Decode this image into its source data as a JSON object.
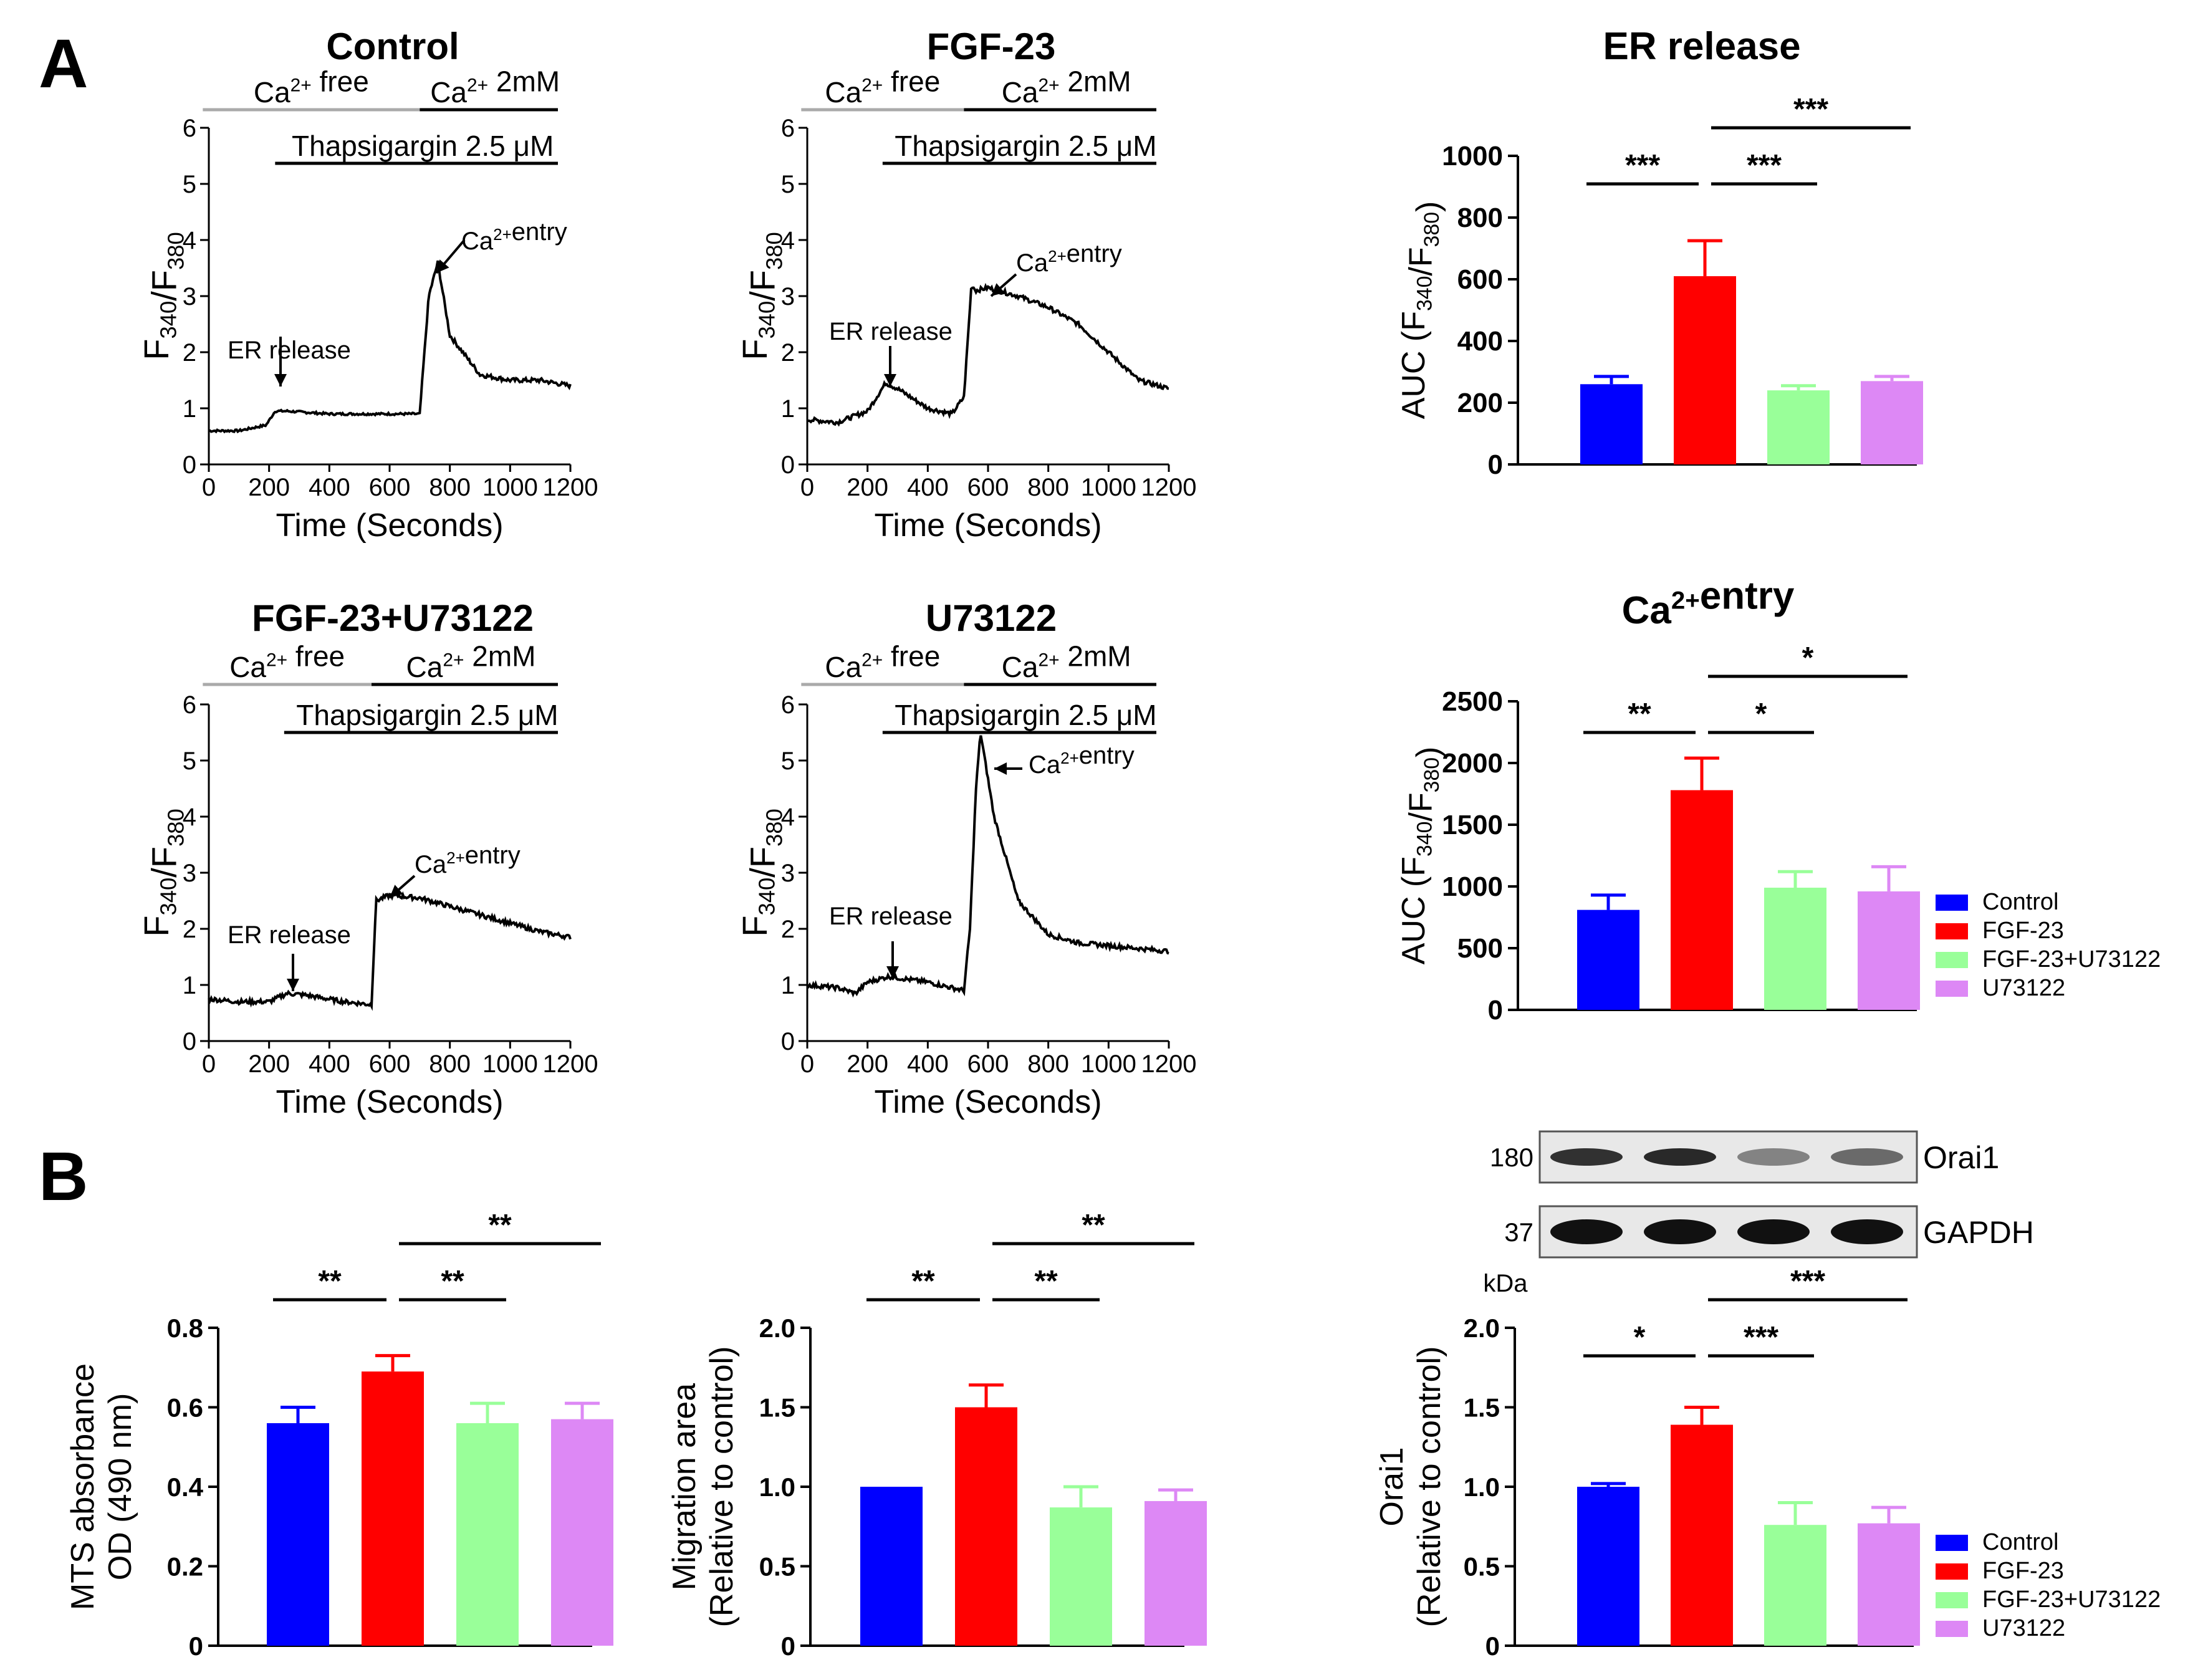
{
  "panel_labels": {
    "a": "A",
    "b": "B"
  },
  "colors": {
    "control": "#0000ff",
    "fgf23": "#ff0000",
    "fgf23_u73122": "#99ff99",
    "u73122": "#dd88f5",
    "ca_free_bar": "#aaaaaa",
    "ink": "#000000"
  },
  "trace_common": {
    "ca_free": "Ca2+ free",
    "ca_2mm": "Ca2+ 2mM",
    "thapsigargin": "Thapsigargin 2.5 μM",
    "ylabel": "F340/F380",
    "xlabel": "Time (Seconds)",
    "er_release": "ER release",
    "ca_entry": "Ca2+entry"
  },
  "legend": {
    "items": [
      "Control",
      "FGF-23",
      "FGF-23+U73122",
      "U73122"
    ]
  },
  "western_blot": {
    "bands": [
      {
        "label": "Orai1",
        "mw": "180",
        "intensity": [
          0.8,
          0.85,
          0.3,
          0.45
        ]
      },
      {
        "label": "GAPDH",
        "mw": "37",
        "intensity": [
          1.0,
          1.0,
          1.0,
          1.0
        ]
      }
    ],
    "unit": "kDa"
  },
  "chart_data": [
    {
      "id": "trace_control",
      "type": "line",
      "title": "Control",
      "xlabel": "Time (Seconds)",
      "ylabel": "F340/F380",
      "xlim": [
        0,
        1200
      ],
      "ylim": [
        0,
        6
      ],
      "xticks": [
        0,
        200,
        400,
        600,
        800,
        1000,
        1200
      ],
      "yticks": [
        0,
        1,
        2,
        3,
        4,
        5,
        6
      ],
      "x": [
        0,
        100,
        190,
        220,
        260,
        400,
        600,
        700,
        730,
        760,
        800,
        900,
        1000,
        1100,
        1200
      ],
      "y": [
        0.6,
        0.6,
        0.7,
        0.95,
        0.95,
        0.9,
        0.9,
        0.9,
        3.0,
        3.6,
        2.3,
        1.6,
        1.5,
        1.5,
        1.4
      ],
      "er_release_time": 230,
      "ca_entry_time": 760
    },
    {
      "id": "trace_fgf23",
      "type": "line",
      "title": "FGF-23",
      "xlabel": "Time (Seconds)",
      "ylabel": "F340/F380",
      "xlim": [
        0,
        1200
      ],
      "ylim": [
        0,
        6
      ],
      "xticks": [
        0,
        200,
        400,
        600,
        800,
        1000,
        1200
      ],
      "yticks": [
        0,
        1,
        2,
        3,
        4,
        5,
        6
      ],
      "x": [
        0,
        100,
        200,
        260,
        300,
        400,
        480,
        520,
        545,
        560,
        600,
        700,
        800,
        900,
        1000,
        1100,
        1200
      ],
      "y": [
        0.8,
        0.75,
        0.95,
        1.45,
        1.35,
        1.0,
        0.9,
        1.2,
        3.2,
        3.1,
        3.15,
        3.0,
        2.8,
        2.5,
        2.0,
        1.5,
        1.35
      ],
      "er_release_time": 265,
      "ca_entry_time": 590
    },
    {
      "id": "trace_fgf23_u73122",
      "type": "line",
      "title": "FGF-23+U73122",
      "xlabel": "Time (Seconds)",
      "ylabel": "F340/F380",
      "xlim": [
        0,
        1200
      ],
      "ylim": [
        0,
        6
      ],
      "xticks": [
        0,
        200,
        400,
        600,
        800,
        1000,
        1200
      ],
      "yticks": [
        0,
        1,
        2,
        3,
        4,
        5,
        6
      ],
      "x": [
        0,
        100,
        200,
        260,
        320,
        450,
        540,
        555,
        600,
        700,
        800,
        900,
        1000,
        1100,
        1200
      ],
      "y": [
        0.75,
        0.7,
        0.7,
        0.85,
        0.82,
        0.7,
        0.65,
        2.5,
        2.6,
        2.55,
        2.4,
        2.25,
        2.1,
        1.95,
        1.85
      ],
      "er_release_time": 260,
      "ca_entry_time": 610
    },
    {
      "id": "trace_u73122",
      "type": "line",
      "title": "U73122",
      "xlabel": "Time (Seconds)",
      "ylabel": "F340/F380",
      "xlim": [
        0,
        1200
      ],
      "ylim": [
        0,
        6
      ],
      "xticks": [
        0,
        200,
        400,
        600,
        800,
        1000,
        1200
      ],
      "yticks": [
        0,
        1,
        2,
        3,
        4,
        5,
        6
      ],
      "x": [
        0,
        100,
        160,
        200,
        270,
        400,
        520,
        540,
        560,
        575,
        620,
        700,
        800,
        900,
        1000,
        1100,
        1200
      ],
      "y": [
        1.0,
        0.95,
        0.85,
        1.05,
        1.15,
        1.05,
        0.9,
        2.0,
        4.5,
        5.5,
        4.0,
        2.5,
        1.9,
        1.75,
        1.7,
        1.65,
        1.6
      ],
      "er_release_time": 270,
      "ca_entry_time": 575
    },
    {
      "id": "bar_er_release",
      "type": "bar",
      "title": "ER release",
      "ylabel": "AUC (F340/F380)",
      "categories": [
        "Control",
        "FGF-23",
        "FGF-23+U73122",
        "U73122"
      ],
      "values": [
        260,
        610,
        240,
        270
      ],
      "errors": [
        25,
        115,
        15,
        15
      ],
      "ylim": [
        0,
        1000
      ],
      "yticks": [
        0,
        200,
        400,
        600,
        800,
        1000
      ],
      "significance": [
        {
          "from": 0,
          "to": 1,
          "label": "***"
        },
        {
          "from": 1,
          "to": 2,
          "label": "***"
        },
        {
          "from": 1,
          "to": 3,
          "label": "***"
        }
      ]
    },
    {
      "id": "bar_ca_entry",
      "type": "bar",
      "title": "Ca2+entry",
      "ylabel": "AUC (F340/F380)",
      "categories": [
        "Control",
        "FGF-23",
        "FGF-23+U73122",
        "U73122"
      ],
      "values": [
        810,
        1780,
        990,
        960
      ],
      "errors": [
        120,
        260,
        130,
        200
      ],
      "ylim": [
        0,
        2500
      ],
      "yticks": [
        0,
        500,
        1000,
        1500,
        2000,
        2500
      ],
      "significance": [
        {
          "from": 0,
          "to": 1,
          "label": "**"
        },
        {
          "from": 1,
          "to": 2,
          "label": "*"
        },
        {
          "from": 1,
          "to": 3,
          "label": "*"
        }
      ]
    },
    {
      "id": "bar_mts",
      "type": "bar",
      "title": "",
      "ylabel": [
        "MTS absorbance",
        "OD (490 nm)"
      ],
      "categories": [
        "Control",
        "FGF-23",
        "FGF-23+U73122",
        "U73122"
      ],
      "values": [
        0.56,
        0.69,
        0.56,
        0.57
      ],
      "errors": [
        0.04,
        0.04,
        0.05,
        0.04
      ],
      "ylim": [
        0,
        0.8
      ],
      "yticks": [
        0,
        0.2,
        0.4,
        0.6,
        0.8
      ],
      "ytick_labels": [
        "0",
        "0.2",
        "0.4",
        "0.6",
        "0.8"
      ],
      "significance": [
        {
          "from": 0,
          "to": 1,
          "label": "**"
        },
        {
          "from": 1,
          "to": 2,
          "label": "**"
        },
        {
          "from": 1,
          "to": 3,
          "label": "**"
        }
      ]
    },
    {
      "id": "bar_migration",
      "type": "bar",
      "title": "",
      "ylabel": [
        "Migration area",
        "(Relative to control)"
      ],
      "categories": [
        "Control",
        "FGF-23",
        "FGF-23+U73122",
        "U73122"
      ],
      "values": [
        1.0,
        1.5,
        0.87,
        0.91
      ],
      "errors": [
        0,
        0.14,
        0.13,
        0.07
      ],
      "ylim": [
        0,
        2.0
      ],
      "yticks": [
        0,
        0.5,
        1.0,
        1.5,
        2.0
      ],
      "ytick_labels": [
        "0",
        "0.5",
        "1.0",
        "1.5",
        "2.0"
      ],
      "significance": [
        {
          "from": 0,
          "to": 1,
          "label": "**"
        },
        {
          "from": 1,
          "to": 2,
          "label": "**"
        },
        {
          "from": 1,
          "to": 3,
          "label": "**"
        }
      ]
    },
    {
      "id": "bar_orai1",
      "type": "bar",
      "title": "",
      "ylabel": [
        "Orai1",
        "(Relative to control)"
      ],
      "categories": [
        "Control",
        "FGF-23",
        "FGF-23+U73122",
        "U73122"
      ],
      "values": [
        1.0,
        1.39,
        0.76,
        0.77
      ],
      "errors": [
        0.02,
        0.11,
        0.14,
        0.1
      ],
      "ylim": [
        0,
        2.0
      ],
      "yticks": [
        0,
        0.5,
        1.0,
        1.5,
        2.0
      ],
      "ytick_labels": [
        "0",
        "0.5",
        "1.0",
        "1.5",
        "2.0"
      ],
      "significance": [
        {
          "from": 0,
          "to": 1,
          "label": "*"
        },
        {
          "from": 1,
          "to": 2,
          "label": "***"
        },
        {
          "from": 1,
          "to": 3,
          "label": "***"
        }
      ]
    }
  ]
}
